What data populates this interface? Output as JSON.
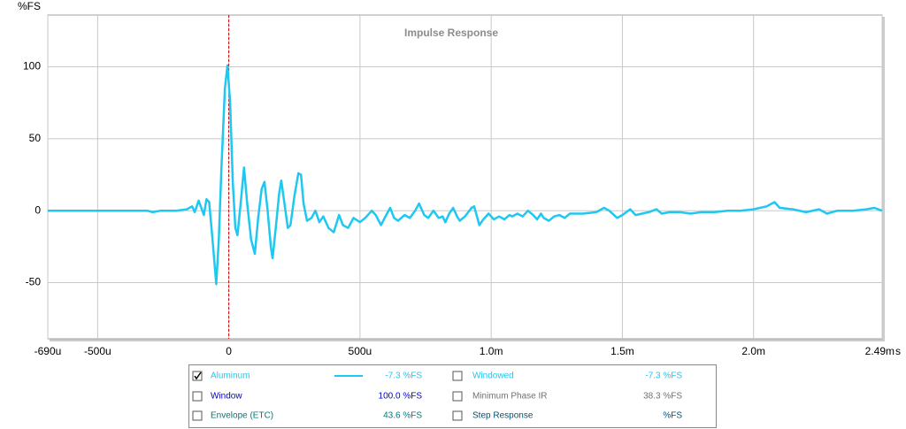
{
  "chart_data": {
    "type": "line",
    "title": "Impulse Response",
    "y_unit": "%FS",
    "x_unit": "s",
    "xlim": [
      -690,
      2490
    ],
    "ylim": [
      -89,
      136
    ],
    "xticks": [
      {
        "value": -690,
        "label": "-690u"
      },
      {
        "value": -500,
        "label": "-500u"
      },
      0,
      {
        "value": 500,
        "label": "500u"
      },
      {
        "value": 1000,
        "label": "1.0m"
      },
      {
        "value": 1500,
        "label": "1.5m"
      },
      {
        "value": 2000,
        "label": "2.0m"
      },
      {
        "value": 2490,
        "label": "2.49m"
      }
    ],
    "yticks": [
      -50,
      0,
      50,
      100
    ],
    "grid": true,
    "x": [
      -690,
      -600,
      -500,
      -400,
      -310,
      -290,
      -260,
      -200,
      -160,
      -140,
      -130,
      -115,
      -105,
      -95,
      -85,
      -75,
      -62,
      -48,
      -38,
      -28,
      -15,
      -5,
      5,
      15,
      25,
      33,
      45,
      58,
      70,
      85,
      99,
      112,
      125,
      136,
      148,
      160,
      167,
      180,
      192,
      200,
      212,
      225,
      235,
      250,
      265,
      275,
      285,
      298,
      315,
      330,
      345,
      360,
      380,
      400,
      420,
      435,
      455,
      475,
      500,
      520,
      545,
      560,
      580,
      600,
      615,
      630,
      645,
      670,
      690,
      710,
      725,
      745,
      760,
      780,
      800,
      815,
      825,
      840,
      855,
      870,
      880,
      900,
      925,
      935,
      955,
      970,
      990,
      1010,
      1030,
      1050,
      1070,
      1080,
      1100,
      1120,
      1140,
      1160,
      1175,
      1190,
      1200,
      1220,
      1240,
      1260,
      1280,
      1300,
      1350,
      1400,
      1430,
      1450,
      1480,
      1500,
      1530,
      1550,
      1600,
      1630,
      1650,
      1680,
      1720,
      1760,
      1800,
      1850,
      1900,
      1950,
      2000,
      2050,
      2080,
      2100,
      2150,
      2200,
      2250,
      2280,
      2320,
      2380,
      2430,
      2460,
      2490
    ],
    "series": [
      {
        "name": "Aluminum",
        "color": "#1ec8f0",
        "reading": "-7.3 %FS",
        "checked": true,
        "values": [
          0,
          0,
          0,
          0,
          0,
          -1,
          0,
          0,
          1,
          3,
          -1,
          7,
          2,
          -3,
          8,
          6,
          -20,
          -51,
          -20,
          30,
          85,
          101,
          75,
          20,
          -12,
          -17,
          5,
          30,
          5,
          -20,
          -30,
          -5,
          15,
          20,
          0,
          -25,
          -33,
          -10,
          12,
          21,
          5,
          -12,
          -10,
          10,
          26,
          25,
          5,
          -7,
          -5,
          0,
          -8,
          -4,
          -12,
          -15,
          -3,
          -10,
          -12,
          -5,
          -8,
          -5,
          0,
          -3,
          -10,
          -3,
          2,
          -5,
          -7,
          -3,
          -5,
          0,
          5,
          -3,
          -5,
          0,
          -5,
          -4,
          -8,
          -2,
          2,
          -4,
          -7,
          -4,
          2,
          3,
          -10,
          -6,
          -2,
          -6,
          -4,
          -6,
          -3,
          -4,
          -2,
          -4,
          0,
          -3,
          -6,
          -2,
          -5,
          -7,
          -4,
          -3,
          -5,
          -2,
          -2,
          -1,
          2,
          0,
          -5,
          -3,
          1,
          -3,
          -1,
          1,
          -2,
          -1,
          -1,
          -2,
          -1,
          -1,
          0,
          0,
          1,
          3,
          6,
          2,
          1,
          -1,
          1,
          -2,
          0,
          0,
          1,
          2,
          0
        ]
      }
    ],
    "other_traces": [
      {
        "name": "Window",
        "color": "#0000c8",
        "reading": "100.0 %FS",
        "checked": false
      },
      {
        "name": "Envelope (ETC)",
        "color": "#007878",
        "reading": "43.6 %FS",
        "checked": false
      },
      {
        "name": "Windowed",
        "color": "#1ec8f0",
        "reading": "-7.3 %FS",
        "checked": false
      },
      {
        "name": "Minimum Phase IR",
        "color": "#707070",
        "reading": "38.3 %FS",
        "checked": false
      },
      {
        "name": "Step Response",
        "color": "#005070",
        "reading": "%FS",
        "checked": false
      }
    ]
  }
}
